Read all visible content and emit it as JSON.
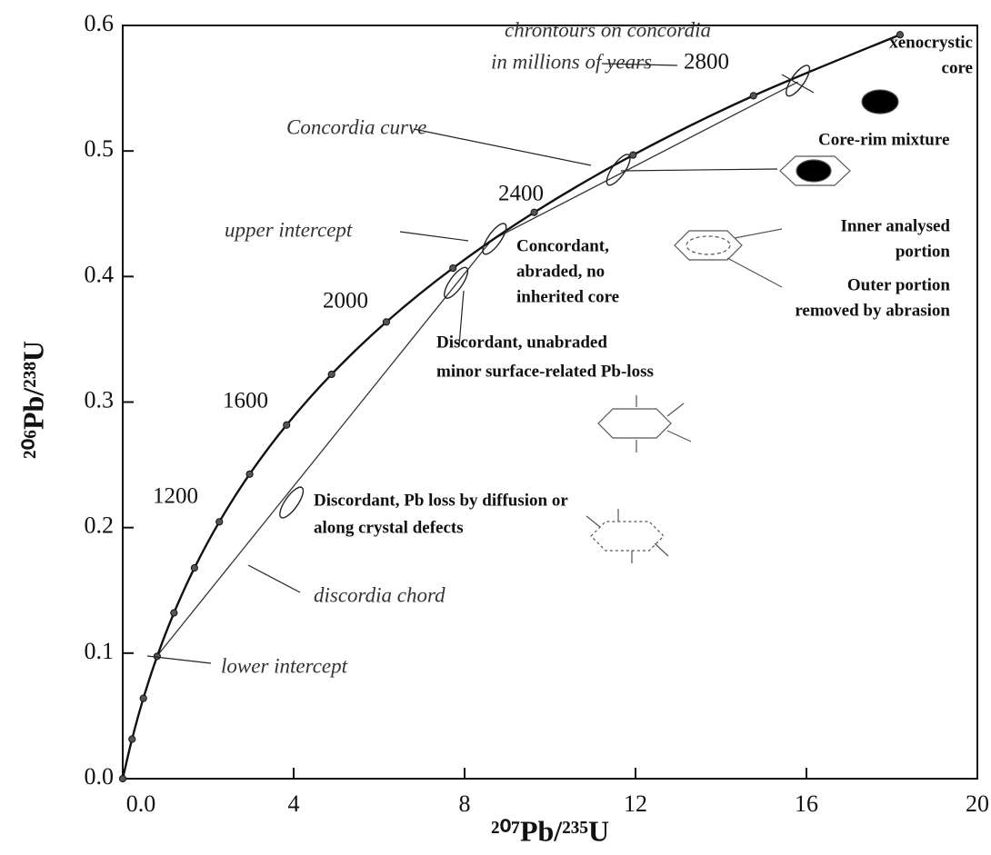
{
  "chart_data": {
    "type": "concordia",
    "xlabel": "²⁰⁷Pb/²³⁵U",
    "ylabel": "²⁰⁶Pb/²³⁸U",
    "xlim": [
      0,
      20
    ],
    "ylim": [
      0,
      0.6
    ],
    "xticks": [
      {
        "value": 0,
        "label": "0.0"
      },
      4,
      8,
      12,
      16,
      20
    ],
    "yticks": [
      {
        "value": 0,
        "label": "0.0"
      },
      0.1,
      0.2,
      0.3,
      0.4,
      0.5,
      0.6
    ],
    "concordia": {
      "x": [
        0,
        0.2177,
        0.4828,
        0.8056,
        1.1988,
        1.6774,
        2.2603,
        2.9701,
        3.8344,
        4.8867,
        6.1683,
        7.7288,
        9.629,
        11.9428,
        14.7604,
        18.19
      ],
      "y": [
        0,
        0.0315,
        0.064,
        0.0975,
        0.1321,
        0.1678,
        0.2046,
        0.2426,
        0.2817,
        0.3221,
        0.3638,
        0.4067,
        0.4511,
        0.4968,
        0.544,
        0.5926
      ]
    },
    "chords": [
      {
        "x": [
          0.81,
          8.63
        ],
        "y": [
          0.098,
          0.429
        ]
      },
      {
        "x": [
          8.63,
          15.8
        ],
        "y": [
          0.429,
          0.555
        ]
      }
    ],
    "ellipses": {
      "x": [
        3.95,
        7.8,
        8.7,
        11.6,
        15.8
      ],
      "y": [
        0.22,
        0.395,
        0.43,
        0.485,
        0.556
      ]
    },
    "annotations": [
      {
        "lines": [
          "chrontours on concordia",
          "in millions of years"
        ],
        "style": "italic"
      },
      {
        "lines": [
          "2800"
        ],
        "style": "age"
      },
      {
        "lines": [
          "xenocrystic",
          "core"
        ],
        "style": "bold"
      },
      {
        "lines": [
          "Concordia curve"
        ],
        "style": "italic"
      },
      {
        "lines": [
          "Core-rim mixture"
        ],
        "style": "bold"
      },
      {
        "lines": [
          "2400"
        ],
        "style": "age"
      },
      {
        "lines": [
          "upper intercept"
        ],
        "style": "italic"
      },
      {
        "lines": [
          "Inner analysed",
          "portion"
        ],
        "style": "bold"
      },
      {
        "lines": [
          "Concordant,",
          "abraded, no",
          "inherited core"
        ],
        "style": "bold"
      },
      {
        "lines": [
          "Outer portion",
          "removed by abrasion"
        ],
        "style": "bold"
      },
      {
        "lines": [
          "2000"
        ],
        "style": "age"
      },
      {
        "lines": [
          "Discordant, unabraded",
          "minor surface-related Pb-loss"
        ],
        "style": "bold"
      },
      {
        "lines": [
          "1600"
        ],
        "style": "age"
      },
      {
        "lines": [
          "1200"
        ],
        "style": "age"
      },
      {
        "lines": [
          "Discordant, Pb loss by diffusion or",
          "along crystal defects"
        ],
        "style": "bold"
      },
      {
        "lines": [
          "discordia chord"
        ],
        "style": "italic"
      },
      {
        "lines": [
          "lower intercept"
        ],
        "style": "italic"
      }
    ]
  }
}
